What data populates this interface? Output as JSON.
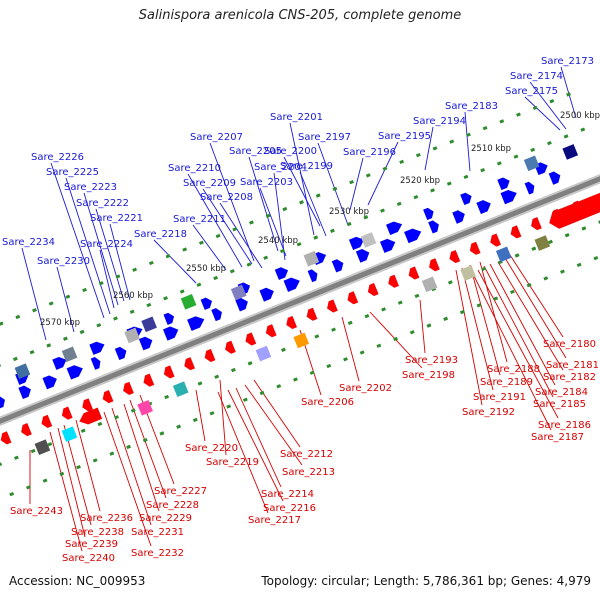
{
  "title": "Salinispora arenicola CNS-205, complete genome",
  "accession_text": "Accession: NC_009953",
  "stats_text": "Topology: circular; Length: 5,786,361 bp; Genes: 4,979",
  "colors": {
    "forward": "#0000ff",
    "reverse": "#ff0000",
    "backbone": "#808080",
    "tick": "#2e8b2e",
    "top_label": "#1a1ad6",
    "bottom_label": "#d60000"
  },
  "scale_labels": [
    "2500 kbp",
    "2510 kbp",
    "2520 kbp",
    "2530 kbp",
    "2540 kbp",
    "2550 kbp",
    "2560 kbp",
    "2570 kbp"
  ],
  "top_genes": [
    "Sare_2173",
    "Sare_2174",
    "Sare_2175",
    "Sare_2183",
    "Sare_2194",
    "Sare_2195",
    "Sare_2196",
    "Sare_2197",
    "Sare_2199",
    "Sare_2200",
    "Sare_2201",
    "Sare_2203",
    "Sare_2204",
    "Sare_2205",
    "Sare_2207",
    "Sare_2208",
    "Sare_2209",
    "Sare_2210",
    "Sare_2211",
    "Sare_2218",
    "Sare_2221",
    "Sare_2222",
    "Sare_2223",
    "Sare_2224",
    "Sare_2225",
    "Sare_2226",
    "Sare_2230",
    "Sare_2234"
  ],
  "bottom_genes": [
    "Sare_2180",
    "Sare_2181",
    "Sare_2182",
    "Sare_2184",
    "Sare_2185",
    "Sare_2186",
    "Sare_2187",
    "Sare_2188",
    "Sare_2189",
    "Sare_2191",
    "Sare_2192",
    "Sare_2193",
    "Sare_2198",
    "Sare_2202",
    "Sare_2206",
    "Sare_2212",
    "Sare_2213",
    "Sare_2214",
    "Sare_2216",
    "Sare_2217",
    "Sare_2219",
    "Sare_2220",
    "Sare_2227",
    "Sare_2228",
    "Sare_2229",
    "Sare_2231",
    "Sare_2232",
    "Sare_2236",
    "Sare_2238",
    "Sare_2239",
    "Sare_2240",
    "Sare_2243"
  ]
}
